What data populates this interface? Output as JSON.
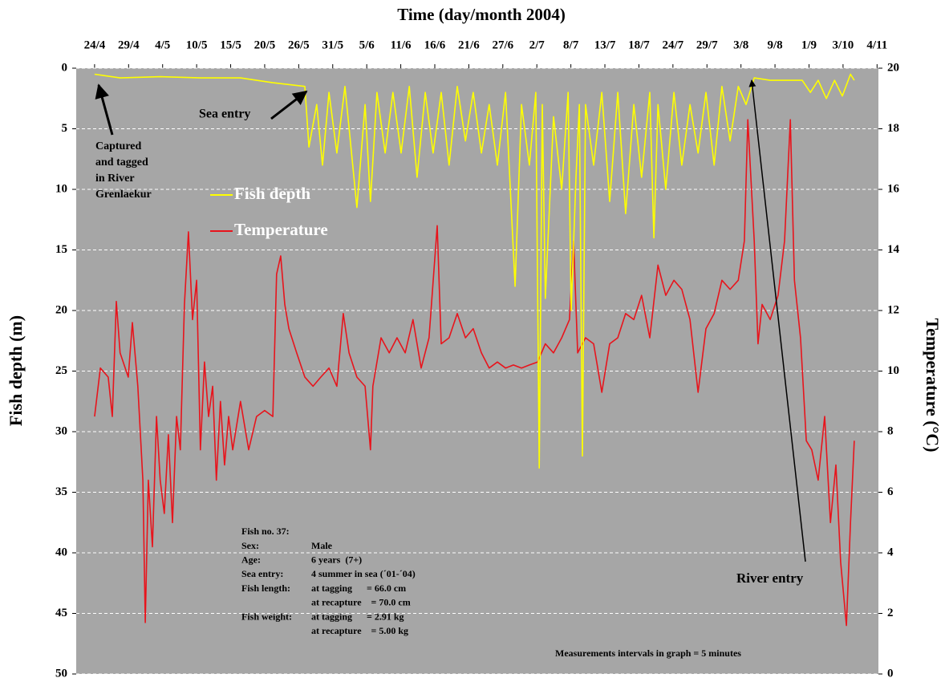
{
  "chart_data": {
    "type": "line",
    "title": "Time (day/month  2004)",
    "y_label": "Fish depth (m)",
    "y2_label": "Temperature (°C)",
    "xlim": [
      -0.54,
      23.04
    ],
    "xticks": [
      {
        "value": 0,
        "label": "24/4"
      },
      {
        "value": 1,
        "label": "29/4"
      },
      {
        "value": 2,
        "label": "4/5"
      },
      {
        "value": 3,
        "label": "10/5"
      },
      {
        "value": 4,
        "label": "15/5"
      },
      {
        "value": 5,
        "label": "20/5"
      },
      {
        "value": 6,
        "label": "26/5"
      },
      {
        "value": 7,
        "label": "31/5"
      },
      {
        "value": 8,
        "label": "5/6"
      },
      {
        "value": 9,
        "label": "11/6"
      },
      {
        "value": 10,
        "label": "16/6"
      },
      {
        "value": 11,
        "label": "21/6"
      },
      {
        "value": 12,
        "label": "27/6"
      },
      {
        "value": 13,
        "label": "2/7"
      },
      {
        "value": 14,
        "label": "8/7"
      },
      {
        "value": 15,
        "label": "13/7"
      },
      {
        "value": 16,
        "label": "18/7"
      },
      {
        "value": 17,
        "label": "24/7"
      },
      {
        "value": 18,
        "label": "29/7"
      },
      {
        "value": 19,
        "label": "3/8"
      },
      {
        "value": 20,
        "label": "9/8"
      },
      {
        "value": 21,
        "label": "1/9"
      },
      {
        "value": 22,
        "label": "3/10"
      },
      {
        "value": 23,
        "label": "4/11"
      }
    ],
    "ylim": [
      0,
      50
    ],
    "y_inverted": true,
    "yticks": [
      0,
      5,
      10,
      15,
      20,
      25,
      30,
      35,
      40,
      45,
      50
    ],
    "y2lim": [
      0,
      20
    ],
    "y2ticks": [
      0,
      2,
      4,
      6,
      8,
      10,
      12,
      14,
      16,
      18,
      20
    ],
    "grid": true,
    "series": [
      {
        "name": "Fish depth",
        "color": "#ffff00",
        "x": [
          0,
          0.75,
          1.93,
          3.11,
          4.29,
          5.24,
          6.18,
          6.3,
          6.53,
          6.7,
          6.89,
          7.12,
          7.36,
          7.71,
          7.95,
          8.11,
          8.3,
          8.54,
          8.77,
          9.01,
          9.25,
          9.48,
          9.72,
          9.95,
          10.19,
          10.42,
          10.66,
          10.9,
          11.13,
          11.37,
          11.6,
          11.84,
          12.08,
          12.36,
          12.55,
          12.78,
          12.97,
          13.07,
          13.16,
          13.25,
          13.49,
          13.73,
          13.92,
          14.01,
          14.15,
          14.25,
          14.34,
          14.43,
          14.67,
          14.91,
          15.14,
          15.38,
          15.61,
          15.85,
          16.08,
          16.32,
          16.44,
          16.56,
          16.79,
          17.03,
          17.26,
          17.5,
          17.74,
          17.97,
          18.21,
          18.44,
          18.68,
          18.92,
          19.15,
          19.39,
          19.86,
          20.33,
          20.8,
          21.04,
          21.27,
          21.51,
          21.75,
          21.98,
          22.22,
          22.33
        ],
        "values": [
          0.5,
          0.8,
          0.7,
          0.8,
          0.8,
          1.2,
          1.5,
          6.5,
          3,
          8,
          2,
          7,
          1.5,
          11.5,
          3,
          11,
          2,
          7,
          2,
          7,
          1.5,
          9,
          2,
          7,
          2,
          8,
          1.5,
          6,
          2,
          7,
          3,
          8,
          2,
          18,
          3,
          8,
          2,
          33,
          3,
          19,
          4,
          10,
          2,
          20,
          9,
          3,
          32,
          3,
          8,
          2,
          11,
          2,
          12,
          3,
          9,
          2,
          14,
          3,
          10,
          2,
          8,
          3,
          7,
          2,
          8,
          1.5,
          6,
          1.5,
          3,
          0.8,
          1,
          1,
          1,
          2,
          1,
          2.5,
          1,
          2.3,
          0.5,
          1
        ]
      },
      {
        "name": "Temperature",
        "color": "#e8141c",
        "axis": "y2",
        "x": [
          0,
          0.17,
          0.4,
          0.52,
          0.64,
          0.75,
          0.99,
          1.11,
          1.27,
          1.42,
          1.49,
          1.58,
          1.7,
          1.82,
          1.93,
          2.05,
          2.17,
          2.29,
          2.41,
          2.52,
          2.64,
          2.76,
          2.88,
          3.0,
          3.11,
          3.23,
          3.35,
          3.47,
          3.58,
          3.7,
          3.82,
          3.94,
          4.06,
          4.29,
          4.53,
          4.76,
          5.0,
          5.24,
          5.35,
          5.47,
          5.59,
          5.71,
          5.94,
          6.18,
          6.42,
          6.65,
          6.89,
          7.12,
          7.31,
          7.48,
          7.71,
          7.95,
          8.11,
          8.18,
          8.42,
          8.66,
          8.89,
          9.13,
          9.36,
          9.6,
          9.83,
          10.07,
          10.19,
          10.42,
          10.66,
          10.9,
          11.13,
          11.37,
          11.6,
          11.84,
          12.08,
          12.31,
          12.55,
          12.78,
          13.02,
          13.25,
          13.49,
          13.73,
          13.96,
          14.08,
          14.2,
          14.43,
          14.67,
          14.91,
          15.14,
          15.38,
          15.61,
          15.85,
          16.08,
          16.32,
          16.56,
          16.79,
          17.03,
          17.26,
          17.5,
          17.74,
          17.97,
          18.21,
          18.44,
          18.68,
          18.92,
          19.1,
          19.2,
          19.39,
          19.5,
          19.62,
          19.86,
          20.09,
          20.28,
          20.45,
          20.57,
          20.75,
          20.92,
          21.08,
          21.27,
          21.46,
          21.63,
          21.79,
          21.93,
          22.1,
          22.22,
          22.33
        ],
        "values": [
          8.5,
          10.1,
          9.8,
          8.5,
          12.3,
          10.6,
          9.8,
          11.6,
          9.5,
          6.4,
          1.7,
          6.4,
          4.2,
          8.5,
          6.4,
          5.3,
          7.9,
          5.0,
          8.5,
          7.4,
          12.2,
          14.6,
          11.7,
          13.0,
          7.4,
          10.3,
          8.5,
          9.5,
          6.4,
          9.0,
          6.9,
          8.5,
          7.4,
          9.0,
          7.4,
          8.5,
          8.7,
          8.5,
          13.2,
          13.8,
          12.2,
          11.4,
          10.6,
          9.8,
          9.5,
          9.8,
          10.1,
          9.5,
          11.9,
          10.6,
          9.8,
          9.5,
          7.4,
          9.5,
          11.1,
          10.6,
          11.1,
          10.6,
          11.7,
          10.1,
          11.1,
          14.8,
          10.9,
          11.1,
          11.9,
          11.1,
          11.4,
          10.6,
          10.1,
          10.3,
          10.1,
          10.2,
          10.1,
          10.2,
          10.3,
          10.9,
          10.6,
          11.1,
          11.7,
          14.3,
          10.6,
          11.1,
          10.9,
          9.3,
          10.9,
          11.1,
          11.9,
          11.7,
          12.5,
          11.1,
          13.5,
          12.5,
          13.0,
          12.7,
          11.7,
          9.3,
          11.4,
          11.9,
          13.0,
          12.7,
          13.0,
          14.3,
          18.3,
          14.3,
          10.9,
          12.2,
          11.7,
          12.5,
          14.3,
          18.3,
          13.0,
          11.1,
          7.7,
          7.4,
          6.4,
          8.5,
          5.0,
          6.9,
          3.7,
          1.6,
          5.0,
          7.7
        ]
      }
    ],
    "annotations": {
      "captured": [
        "Captured",
        "and tagged",
        "in River",
        "Grenlaekur"
      ],
      "sea_entry": "Sea entry",
      "river_entry": "River entry",
      "interval_note": "Measurements intervals in graph  = 5 minutes"
    },
    "info": {
      "title": "Fish no. 37:",
      "rows": [
        {
          "label": "Sex:",
          "value": "Male"
        },
        {
          "label": "Age:",
          "value": "6 years  (7+)"
        },
        {
          "label": "Sea entry:",
          "value": "4 summer in sea (´01-´04)"
        },
        {
          "label": "Fish length:",
          "value": "at tagging      = 66.0 cm"
        },
        {
          "value": "at recapture    = 70.0 cm"
        },
        {
          "label": "Fish weight:",
          "value": "at tagging      = 2.91 kg"
        },
        {
          "value": "at recapture    = 5.00 kg"
        }
      ]
    }
  }
}
